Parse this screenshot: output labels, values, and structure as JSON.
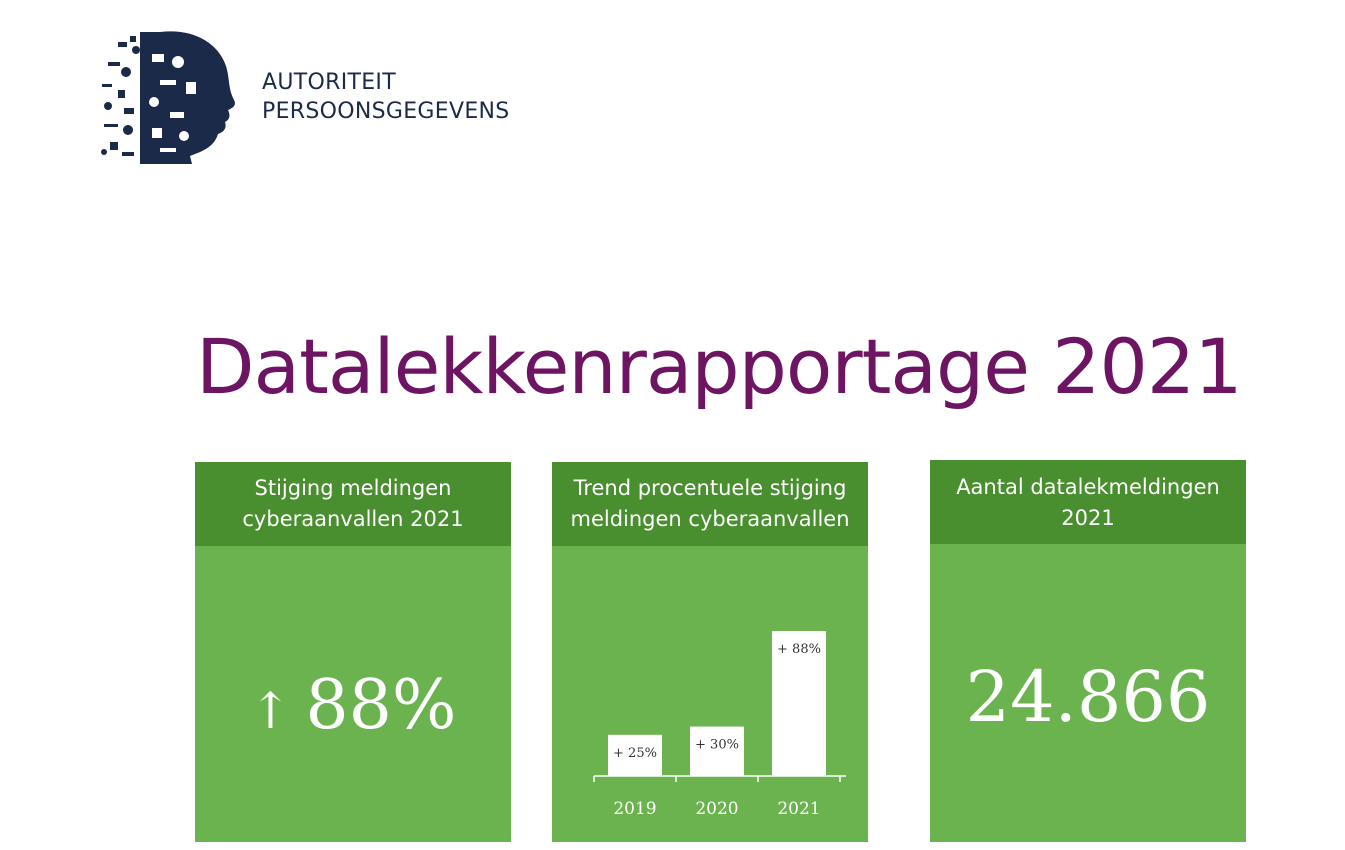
{
  "header": {
    "org_line1": "AUTORITEIT",
    "org_line2": "PERSOONSGEGEVENS",
    "logo_icon": "profile-head-collage-icon"
  },
  "page": {
    "title": "Datalekkenrapportage 2021"
  },
  "cards": {
    "increase": {
      "title": "Stijging meldingen cyberaanvallen 2021",
      "arrow": "↑",
      "value": "88%"
    },
    "trend": {
      "title": "Trend procentuele stijging meldingen cyberaanvallen"
    },
    "total": {
      "title": "Aantal datalekmeldingen 2021",
      "value": "24.866"
    }
  },
  "chart_data": {
    "type": "bar",
    "categories": [
      "2019",
      "2020",
      "2021"
    ],
    "values": [
      25,
      30,
      88
    ],
    "data_labels": [
      "+ 25%",
      "+ 30%",
      "+ 88%"
    ],
    "title": "Trend procentuele stijging meldingen cyberaanvallen",
    "ylim": [
      0,
      88
    ]
  },
  "colors": {
    "title_purple": "#6d1562",
    "card_green": "#6ab34e",
    "card_header_green": "#4a8f2f",
    "navy": "#1b2a48",
    "bar_white": "#ffffff"
  }
}
